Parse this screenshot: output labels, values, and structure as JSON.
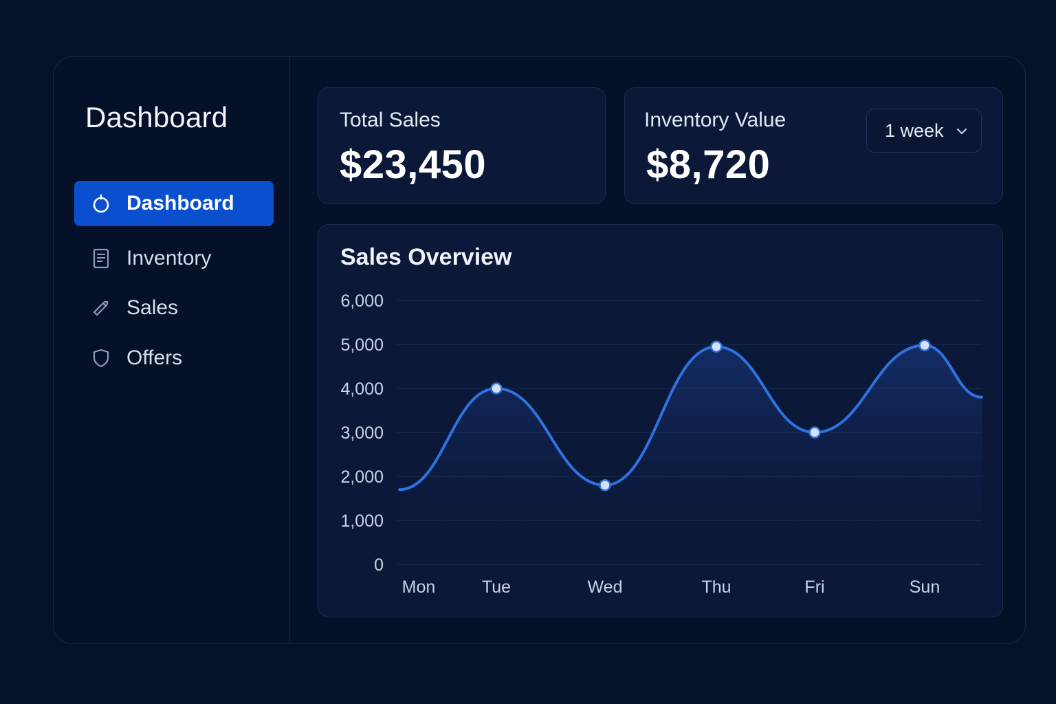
{
  "sidebar": {
    "title": "Dashboard",
    "items": [
      {
        "label": "Dashboard",
        "icon": "dashboard-icon",
        "active": true
      },
      {
        "label": "Inventory",
        "icon": "document-icon",
        "active": false
      },
      {
        "label": "Sales",
        "icon": "tag-icon",
        "active": false
      },
      {
        "label": "Offers",
        "icon": "shield-icon",
        "active": false
      }
    ]
  },
  "cards": {
    "total_sales": {
      "label": "Total Sales",
      "value": "$23,450"
    },
    "inventory_value": {
      "label": "Inventory Value",
      "value": "$8,720",
      "period": "1 week"
    }
  },
  "chart": {
    "title": "Sales Overview"
  },
  "colors": {
    "accent": "#0a4fcd",
    "line": "#2f72e0",
    "background": "#06112a"
  },
  "chart_data": {
    "type": "line",
    "title": "Sales Overview",
    "categories": [
      "Mon",
      "Tue",
      "Wed",
      "Thu",
      "Fri",
      "Sun"
    ],
    "series": [
      {
        "values": [
          1700,
          4000,
          1800,
          4950,
          3000,
          4980
        ]
      }
    ],
    "end_value": 3800,
    "yticks": [
      "0",
      "1,000",
      "2,000",
      "3,000",
      "4,000",
      "5,000",
      "6,000"
    ],
    "ylim": [
      0,
      6000
    ],
    "grid": true,
    "area_fill": true,
    "markers": [
      false,
      true,
      true,
      true,
      true,
      true
    ]
  }
}
